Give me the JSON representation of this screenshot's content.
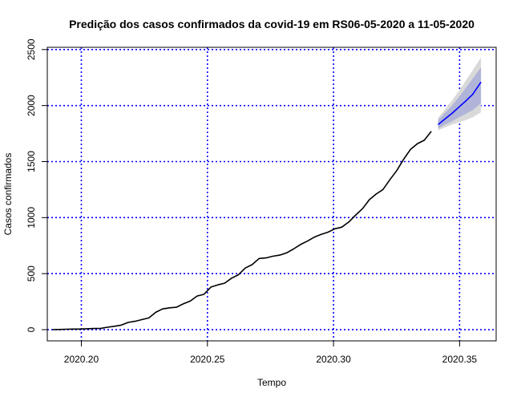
{
  "chart_data": {
    "type": "line",
    "title": "Predição dos casos confirmados da covid-19 em RS06-05-2020 a 11-05-2020",
    "xlabel": "Tempo",
    "ylabel": "Casos confirmados",
    "xlim": [
      2020.1865,
      2020.3645
    ],
    "ylim": [
      -100,
      2520
    ],
    "x_ticks": [
      {
        "value": 2020.2,
        "label": "2020.20"
      },
      {
        "value": 2020.25,
        "label": "2020.25"
      },
      {
        "value": 2020.3,
        "label": "2020.30"
      },
      {
        "value": 2020.35,
        "label": "2020.35"
      }
    ],
    "y_ticks": [
      {
        "value": 0,
        "label": "0"
      },
      {
        "value": 500,
        "label": "500"
      },
      {
        "value": 1000,
        "label": "1000"
      },
      {
        "value": 1500,
        "label": "1500"
      },
      {
        "value": 2000,
        "label": "2000"
      },
      {
        "value": 2500,
        "label": "2500"
      }
    ],
    "grid": true,
    "grid_color": "#0000ff",
    "series": [
      {
        "color": "#000000",
        "x": [
          2020.1885,
          2020.1913,
          2020.194,
          2020.1967,
          2020.1995,
          2020.2022,
          2020.2049,
          2020.2077,
          2020.2104,
          2020.2131,
          2020.2158,
          2020.2186,
          2020.2213,
          2020.224,
          2020.2268,
          2020.2295,
          2020.2322,
          2020.235,
          2020.2377,
          2020.2404,
          2020.2432,
          2020.2459,
          2020.2486,
          2020.2514,
          2020.2541,
          2020.2568,
          2020.2596,
          2020.2623,
          2020.265,
          2020.2677,
          2020.2705,
          2020.2732,
          2020.2759,
          2020.2787,
          2020.2814,
          2020.2841,
          2020.2869,
          2020.2896,
          2020.2923,
          2020.2951,
          2020.2978,
          2020.3005,
          2020.3033,
          2020.306,
          2020.3087,
          2020.3115,
          2020.3142,
          2020.3169,
          2020.3196,
          2020.3224,
          2020.3251,
          2020.3278,
          2020.3306,
          2020.3333,
          2020.336,
          2020.3388
        ],
        "y": [
          0,
          2,
          4,
          5,
          5,
          8,
          10,
          12,
          22,
          30,
          40,
          65,
          75,
          90,
          105,
          155,
          185,
          195,
          200,
          230,
          255,
          300,
          315,
          380,
          400,
          415,
          460,
          490,
          550,
          580,
          635,
          640,
          655,
          665,
          685,
          720,
          760,
          790,
          825,
          850,
          870,
          900,
          915,
          960,
          1020,
          1080,
          1160,
          1210,
          1250,
          1340,
          1420,
          1520,
          1610,
          1660,
          1690,
          1770
        ]
      },
      {
        "color": "#0000ff",
        "x": [
          2020.3415,
          2020.3442,
          2020.347,
          2020.3497,
          2020.3524,
          2020.3552,
          2020.3585
        ],
        "y": [
          1830,
          1880,
          1930,
          1985,
          2040,
          2100,
          2210
        ],
        "band80_low": [
          1795,
          1830,
          1860,
          1895,
          1925,
          1960,
          2020
        ],
        "band80_high": [
          1870,
          1935,
          2000,
          2075,
          2155,
          2240,
          2340
        ],
        "band95_low": [
          1780,
          1805,
          1830,
          1850,
          1870,
          1895,
          1940
        ],
        "band95_high": [
          1890,
          1965,
          2045,
          2130,
          2220,
          2315,
          2430
        ],
        "band80_color": "#b0b4d8",
        "band95_color": "#d9d9d9"
      }
    ]
  }
}
